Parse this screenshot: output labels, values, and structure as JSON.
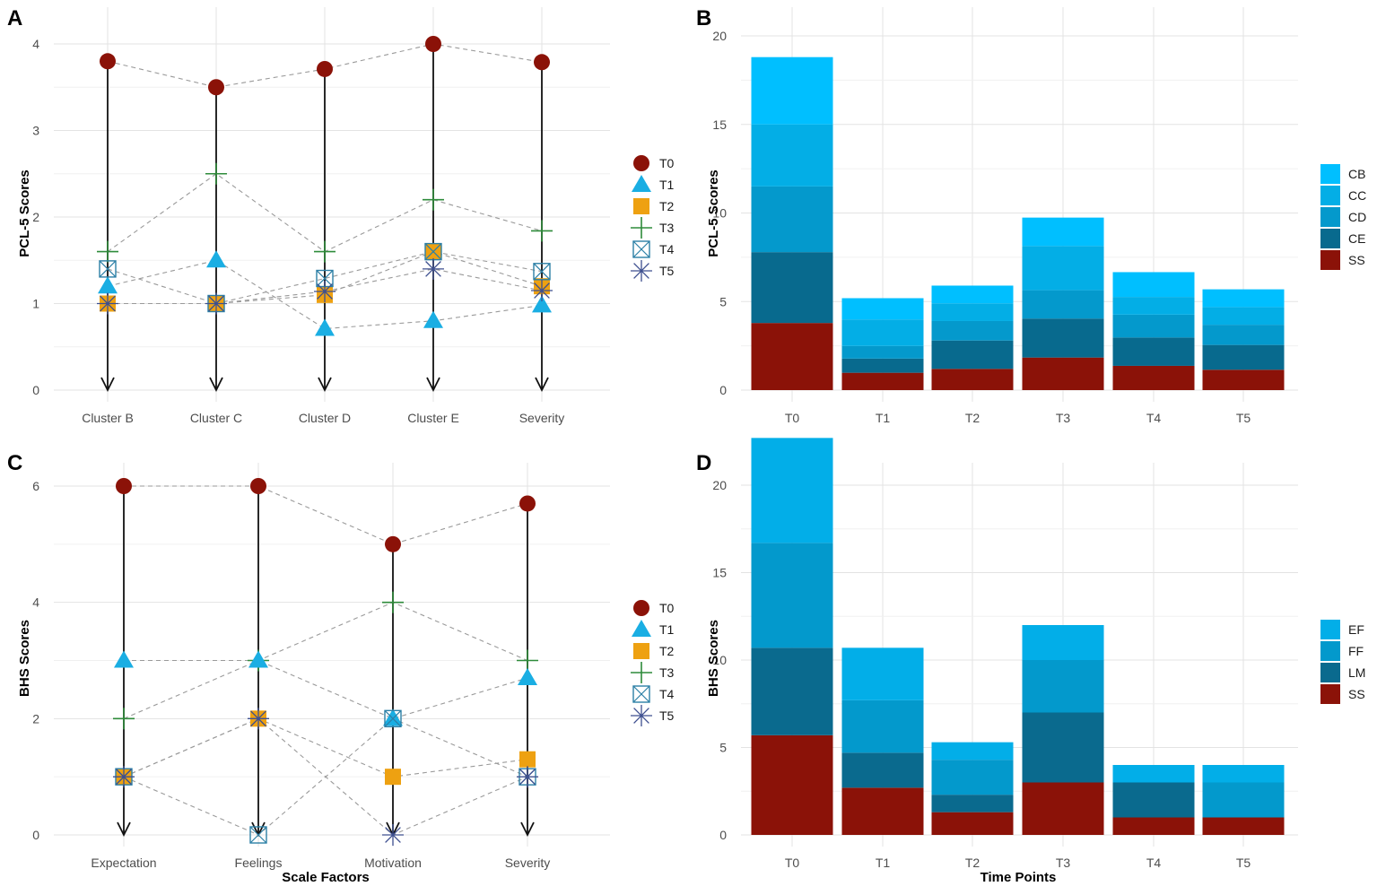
{
  "colors": {
    "T0": "#8b1208",
    "T1": "#1aaee3",
    "T2": "#eea111",
    "T3": "#2e8b3a",
    "T4": "#2c7fa6",
    "T5": "#3d4f8f",
    "CB": "#00bfff",
    "CC": "#03aee6",
    "CD": "#0499cc",
    "CE": "#086a8e",
    "EF": "#02aee8",
    "FF": "#0399cc",
    "LM": "#0a6a8e",
    "SS": "#8b1208",
    "arrow": "#111111",
    "dash": "#9a9a9a"
  },
  "chart_data": [
    {
      "panel": "A",
      "type": "scatter",
      "title": "",
      "xlabel": "",
      "ylabel": "PCL-5 Scores",
      "categories": [
        "Cluster B",
        "Cluster C",
        "Cluster D",
        "Cluster E",
        "Severity"
      ],
      "ylim": [
        0,
        4.1
      ],
      "yticks": [
        0,
        1,
        2,
        3,
        4
      ],
      "series": [
        {
          "name": "T0",
          "values": [
            3.8,
            3.5,
            3.71,
            4.0,
            3.79
          ]
        },
        {
          "name": "T1",
          "values": [
            1.2,
            1.5,
            0.71,
            0.8,
            0.98
          ]
        },
        {
          "name": "T2",
          "values": [
            1.0,
            1.0,
            1.1,
            1.6,
            1.2
          ]
        },
        {
          "name": "T3",
          "values": [
            1.6,
            2.5,
            1.6,
            2.2,
            1.84
          ]
        },
        {
          "name": "T4",
          "values": [
            1.4,
            1.0,
            1.29,
            1.6,
            1.37
          ]
        },
        {
          "name": "T5",
          "values": [
            1.0,
            1.0,
            1.14,
            1.4,
            1.15
          ]
        }
      ],
      "legend": [
        "T0",
        "T1",
        "T2",
        "T3",
        "T4",
        "T5"
      ]
    },
    {
      "panel": "B",
      "type": "bar",
      "title": "",
      "xlabel": "",
      "ylabel": "PCL-5 Scores",
      "categories": [
        "T0",
        "T1",
        "T2",
        "T3",
        "T4",
        "T5"
      ],
      "ylim": [
        0,
        20.5
      ],
      "yticks": [
        0,
        5,
        10,
        15,
        20
      ],
      "series": [
        {
          "name": "SS",
          "values": [
            3.79,
            0.98,
            1.2,
            1.84,
            1.37,
            1.15
          ]
        },
        {
          "name": "CE",
          "values": [
            4.0,
            0.8,
            1.6,
            2.2,
            1.6,
            1.4
          ]
        },
        {
          "name": "CD",
          "values": [
            3.71,
            0.71,
            1.1,
            1.6,
            1.29,
            1.14
          ]
        },
        {
          "name": "CC",
          "values": [
            3.5,
            1.5,
            1.0,
            2.5,
            1.0,
            1.0
          ]
        },
        {
          "name": "CB",
          "values": [
            3.8,
            1.2,
            1.0,
            1.6,
            1.4,
            1.0
          ]
        }
      ],
      "legend": [
        "CB",
        "CC",
        "CD",
        "CE",
        "SS"
      ]
    },
    {
      "panel": "C",
      "type": "scatter",
      "title": "",
      "xlabel": "Scale Factors",
      "ylabel": "BHS Scores",
      "categories": [
        "Expectation",
        "Feelings",
        "Motivation",
        "Severity"
      ],
      "ylim": [
        0,
        6.15
      ],
      "yticks": [
        0,
        2,
        4,
        6
      ],
      "series": [
        {
          "name": "T0",
          "values": [
            6,
            6,
            5,
            5.7
          ]
        },
        {
          "name": "T1",
          "values": [
            3,
            3,
            2,
            2.7
          ]
        },
        {
          "name": "T2",
          "values": [
            1,
            2,
            1,
            1.3
          ]
        },
        {
          "name": "T3",
          "values": [
            2,
            3,
            4,
            3
          ]
        },
        {
          "name": "T4",
          "values": [
            1,
            0,
            2,
            1
          ]
        },
        {
          "name": "T5",
          "values": [
            1,
            2,
            0,
            1
          ]
        }
      ],
      "legend": [
        "T0",
        "T1",
        "T2",
        "T3",
        "T4",
        "T5"
      ]
    },
    {
      "panel": "D",
      "type": "bar",
      "title": "",
      "xlabel": "Time Points",
      "ylabel": "BHS Scores",
      "categories": [
        "T0",
        "T1",
        "T2",
        "T3",
        "T4",
        "T5"
      ],
      "ylim": [
        0,
        23.5
      ],
      "yticks": [
        0,
        5,
        10,
        15,
        20
      ],
      "series": [
        {
          "name": "SS",
          "values": [
            5.7,
            2.7,
            1.3,
            3.0,
            1.0,
            1.0
          ]
        },
        {
          "name": "LM",
          "values": [
            5.0,
            2.0,
            1.0,
            4.0,
            2.0,
            0.0
          ]
        },
        {
          "name": "FF",
          "values": [
            6.0,
            3.0,
            2.0,
            3.0,
            0.0,
            2.0
          ]
        },
        {
          "name": "EF",
          "values": [
            6.0,
            3.0,
            1.0,
            2.0,
            1.0,
            1.0
          ]
        }
      ],
      "legend": [
        "EF",
        "FF",
        "LM",
        "SS"
      ]
    }
  ]
}
